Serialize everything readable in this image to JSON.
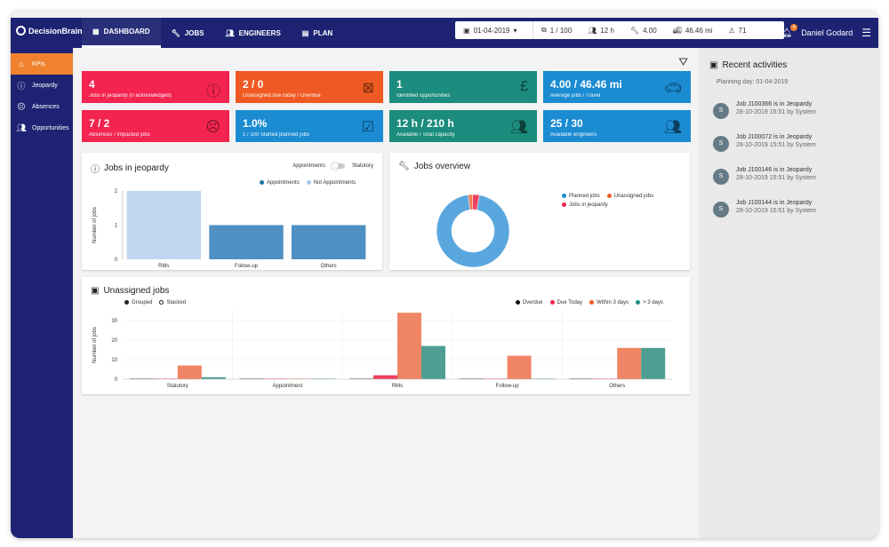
{
  "brand": "DecisionBrain",
  "nav": [
    {
      "label": "DASHBOARD",
      "icon": "dashboard-icon"
    },
    {
      "label": "JOBS",
      "icon": "wrench-icon"
    },
    {
      "label": "ENGINEERS",
      "icon": "people-icon"
    },
    {
      "label": "PLAN",
      "icon": "clipboard-icon"
    }
  ],
  "stats": {
    "date": "01-04-2019",
    "jobs": "1 / 100",
    "hours": "12 h",
    "avg": "4.00",
    "travel": "46.46 mi",
    "alerts": "71"
  },
  "user": {
    "name": "Daniel Godard",
    "notif_count": "4"
  },
  "sidebar": {
    "items": [
      {
        "label": "KPIs"
      },
      {
        "label": "Jeopardy"
      },
      {
        "label": "Absences"
      },
      {
        "label": "Opportunities"
      }
    ]
  },
  "kpis": [
    {
      "value": "4",
      "label": "Jobs in jeopardy (0 acknowledged)",
      "color": "#f3244f"
    },
    {
      "value": "2 / 0",
      "label": "Unassigned due today / Overdue",
      "color": "#ef5a24"
    },
    {
      "value": "1",
      "label": "Identified opportunities",
      "color": "#1b8c7d"
    },
    {
      "value": "4.00 / 46.46 mi",
      "label": "Average jobs / Travel",
      "color": "#1b8bd2"
    },
    {
      "value": "7 / 2",
      "label": "Absences / Impacted jobs",
      "color": "#f3244f"
    },
    {
      "value": "1.0%",
      "label": "1 / 100 Started planned jobs",
      "color": "#1b8bd2"
    },
    {
      "value": "12 h / 210 h",
      "label": "Available / Total capacity",
      "color": "#1b8c7d"
    },
    {
      "value": "25 / 30",
      "label": "Available engineers",
      "color": "#1b8bd2"
    }
  ],
  "jeopardy": {
    "title": "Jobs in jeopardy",
    "toggle_left": "Appointments",
    "toggle_right": "Statutory",
    "legend": [
      "Appointments",
      "Not Appointments"
    ],
    "ylabel": "Number of jobs"
  },
  "overview": {
    "title": "Jobs overview",
    "legend": [
      "Planned jobs",
      "Unassigned jobs",
      "Jobs in jeopardy"
    ]
  },
  "unassigned": {
    "title": "Unassigned jobs",
    "mode_options": [
      "Grouped",
      "Stacked"
    ],
    "legend": [
      "Overdue",
      "Due Today",
      "Within 3 days",
      "> 3 days"
    ],
    "ylabel": "Number of jobs"
  },
  "recent": {
    "title": "Recent activities",
    "planning_day": "Planning day: 01-04-2019",
    "items": [
      {
        "avatar": "S",
        "title": "Job J100366 is in Jeopardy",
        "meta": "28-10-2019 15:51 by System"
      },
      {
        "avatar": "S",
        "title": "Job J100072 is in Jeopardy",
        "meta": "28-10-2019 15:51 by System"
      },
      {
        "avatar": "S",
        "title": "Job J100146 is in Jeopardy",
        "meta": "28-10-2019 15:51 by System"
      },
      {
        "avatar": "S",
        "title": "Job J100144 is in Jeopardy",
        "meta": "28-10-2019 15:51 by System"
      }
    ]
  },
  "chart_data": [
    {
      "type": "bar",
      "title": "Jobs in jeopardy",
      "categories": [
        "RMs",
        "Follow-up",
        "Others"
      ],
      "series": [
        {
          "name": "Appointments",
          "values": [
            0,
            1,
            1
          ],
          "color": "#4f8fc1"
        },
        {
          "name": "Not Appointments",
          "values": [
            2,
            0,
            0
          ],
          "color": "#c1d5ef"
        }
      ],
      "stacked": true,
      "ylabel": "Number of jobs",
      "ylim": [
        0,
        2
      ],
      "yticks": [
        0,
        1,
        2
      ]
    },
    {
      "type": "pie",
      "title": "Jobs overview",
      "donut": true,
      "slices": [
        {
          "name": "Planned jobs",
          "value": 95,
          "color": "#5aa7df"
        },
        {
          "name": "Unassigned jobs",
          "value": 2,
          "color": "#ef7d55"
        },
        {
          "name": "Jobs in jeopardy",
          "value": 3,
          "color": "#ef3f62"
        }
      ]
    },
    {
      "type": "bar",
      "title": "Unassigned jobs",
      "categories": [
        "Statutory",
        "Appointment",
        "RMs",
        "Follow-up",
        "Others"
      ],
      "series": [
        {
          "name": "Overdue",
          "values": [
            0,
            0,
            0,
            0,
            0
          ],
          "color": "#222222"
        },
        {
          "name": "Due Today",
          "values": [
            0,
            0,
            2,
            0,
            0
          ],
          "color": "#ef3f62"
        },
        {
          "name": "Within 3 days",
          "values": [
            7,
            0,
            34,
            12,
            16
          ],
          "color": "#f08565"
        },
        {
          "name": "> 3 days",
          "values": [
            1,
            0,
            17,
            0,
            16
          ],
          "color": "#4e9e94"
        }
      ],
      "ylabel": "Number of jobs",
      "ylim": [
        0,
        35
      ],
      "yticks": [
        0,
        10,
        20,
        30
      ]
    }
  ]
}
